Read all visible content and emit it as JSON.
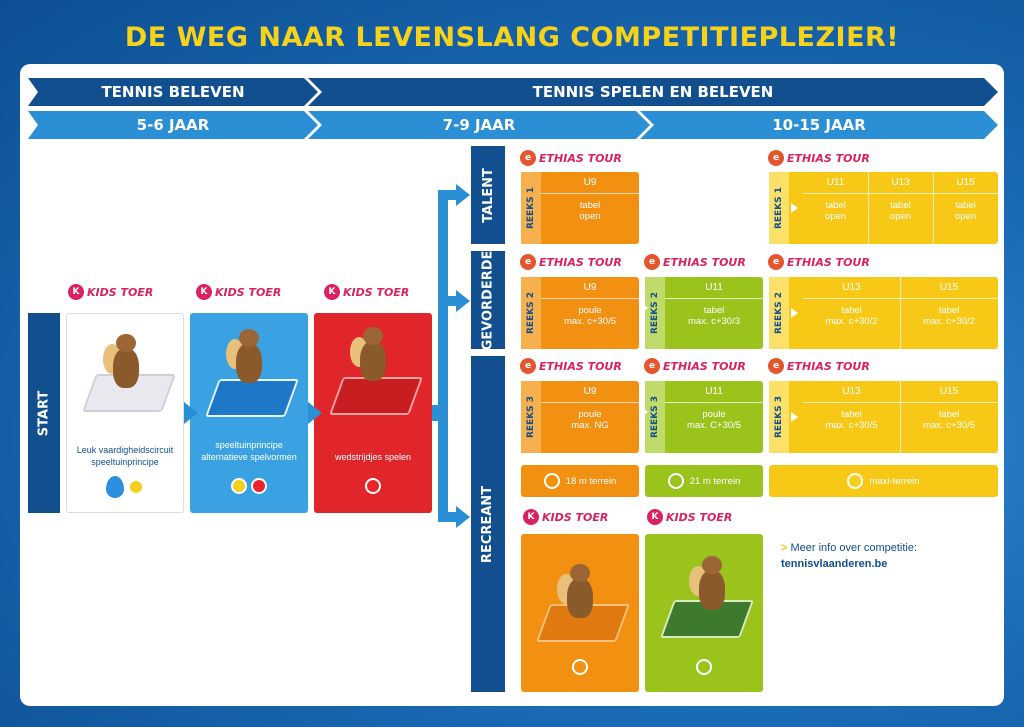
{
  "title": "DE WEG NAAR LEVENSLANG COMPETITIEPLEZIER!",
  "ribbons": {
    "top_left": "TENNIS BELEVEN",
    "top_right": "TENNIS SPELEN EN BELEVEN",
    "age_1": "5-6 JAAR",
    "age_2": "7-9 JAAR",
    "age_3": "10-15 JAAR"
  },
  "side_tabs": {
    "start": "START",
    "talent": "TALENT",
    "gevorderde": "GEVORDERDE",
    "recreant": "RECREANT"
  },
  "logos": {
    "kids_toer": "KIDS TOER",
    "ethias_tour": "ETHIAS TOUR",
    "kids_mark": "K",
    "ethias_mark": "e"
  },
  "kids_cards": [
    {
      "caption_line1": "Leuk vaardigheidscircuit",
      "caption_line2": "speeltuinprincipe"
    },
    {
      "caption_line1": "speeltuinprincipe",
      "caption_line2": "alternatieve spelvormen"
    },
    {
      "caption_line1": "wedstrijdjes spelen",
      "caption_line2": ""
    }
  ],
  "reeks": {
    "r1_label": "REEKS 1",
    "r2_label": "REEKS 2",
    "r3_label": "REEKS 3",
    "talent_u9": {
      "head": "U9",
      "line1": "tabel",
      "line2": "open"
    },
    "talent_u11": {
      "head": "U11",
      "line1": "tabel",
      "line2": "open"
    },
    "talent_u13": {
      "head": "U13",
      "line1": "tabel",
      "line2": "open"
    },
    "talent_u15": {
      "head": "U15",
      "line1": "tabel",
      "line2": "open"
    },
    "gev_u9": {
      "head": "U9",
      "line1": "poule",
      "line2": "max. c+30/5"
    },
    "gev_u11": {
      "head": "U11",
      "line1": "tabel",
      "line2": "max. c+30/3"
    },
    "gev_u13": {
      "head": "U13",
      "line1": "tabel",
      "line2": "max. c+30/2"
    },
    "gev_u15": {
      "head": "U15",
      "line1": "tabel",
      "line2": "max. c+30/2"
    },
    "rec_u9": {
      "head": "U9",
      "line1": "poule",
      "line2": "max. NG"
    },
    "rec_u11": {
      "head": "U11",
      "line1": "poule",
      "line2": "max. C+30/5"
    },
    "rec_u13": {
      "head": "U13",
      "line1": "tabel",
      "line2": "max. c+30/5"
    },
    "rec_u15": {
      "head": "U15",
      "line1": "tabel",
      "line2": "max. c+30/5"
    }
  },
  "terrains": {
    "t18": "18 m terrein",
    "t21": "21 m terrein",
    "maxi": "maxi-terrein"
  },
  "info": {
    "prefix": ">",
    "text": "Meer info over competitie:",
    "link": "tennisvlaanderen.be"
  },
  "colors": {
    "orange": "#f29111",
    "green": "#9ac31c",
    "yellow": "#f7c916",
    "red": "#e0262a",
    "blue_dark": "#124f8e",
    "blue_light": "#2b8fd6"
  }
}
